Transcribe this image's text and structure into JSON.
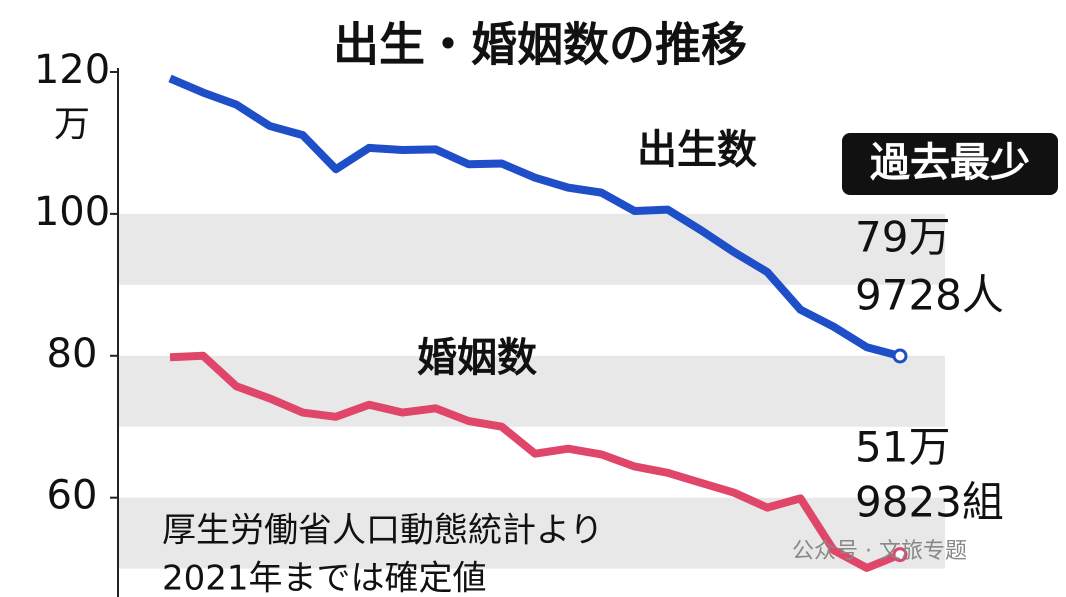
{
  "chart_data": {
    "type": "line",
    "title": "出生・婚姻数の推移",
    "y_unit": "万",
    "categories": [
      null,
      null,
      null,
      null,
      null,
      null,
      null,
      null,
      null,
      null,
      null,
      null,
      null,
      null,
      null,
      null,
      null,
      null,
      null,
      null,
      null,
      null,
      null
    ],
    "series": [
      {
        "name": "出生数",
        "color": "#1f4fc8",
        "values": [
          119.1,
          117.1,
          115.4,
          112.4,
          111.1,
          106.3,
          109.3,
          109.0,
          109.1,
          107.0,
          107.1,
          105.1,
          103.7,
          103.0,
          100.4,
          100.6,
          97.7,
          94.6,
          91.8,
          86.5,
          84.1,
          81.2,
          79.97
        ]
      },
      {
        "name": "婚姻数",
        "color": "#e0456a",
        "values": [
          79.8,
          80.0,
          75.7,
          74.0,
          72.0,
          71.4,
          73.1,
          72.0,
          72.6,
          70.8,
          70.0,
          66.2,
          66.9,
          66.1,
          64.4,
          63.5,
          62.1,
          60.7,
          58.6,
          59.9,
          52.6,
          50.1,
          51.98
        ]
      }
    ],
    "ylim": [
      46,
      120
    ],
    "yticks": [
      60,
      80,
      100,
      120
    ],
    "grid_bands": true,
    "annotations": {
      "badge": "過去最少",
      "birth_end": [
        "79万",
        "9728人"
      ],
      "marriage_end": [
        "51万",
        "9823組"
      ],
      "source": [
        "厚生労働省人口動態統計より",
        "2021年までは確定値"
      ],
      "watermark": "公众号 · 文旅专题"
    }
  }
}
